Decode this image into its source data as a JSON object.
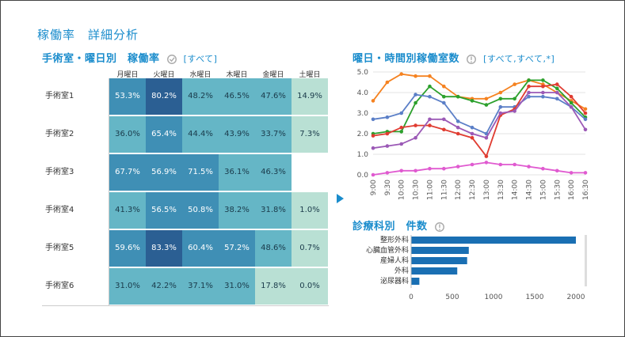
{
  "page_title": "稼働率　詳細分析",
  "heatmap": {
    "title": "手術室・曜日別　稼働率",
    "filter": "[すべて]",
    "columns": [
      "月曜日",
      "火曜日",
      "水曜日",
      "木曜日",
      "金曜日",
      "土曜日"
    ],
    "rows": [
      {
        "label": "手術室1",
        "values": [
          "53.3%",
          "80.2%",
          "48.2%",
          "46.5%",
          "47.6%",
          "14.9%"
        ]
      },
      {
        "label": "手術室2",
        "values": [
          "36.0%",
          "65.4%",
          "44.4%",
          "43.9%",
          "33.7%",
          "7.3%"
        ]
      },
      {
        "label": "手術室3",
        "values": [
          "67.7%",
          "56.9%",
          "71.5%",
          "36.1%",
          "46.3%",
          ""
        ]
      },
      {
        "label": "手術室4",
        "values": [
          "41.3%",
          "56.5%",
          "50.8%",
          "38.2%",
          "31.8%",
          "1.0%"
        ]
      },
      {
        "label": "手術室5",
        "values": [
          "59.6%",
          "83.3%",
          "60.4%",
          "57.2%",
          "48.6%",
          "0.7%"
        ]
      },
      {
        "label": "手術室6",
        "values": [
          "31.0%",
          "42.2%",
          "37.1%",
          "31.0%",
          "17.8%",
          "0.0%"
        ]
      }
    ],
    "colors": {
      "dark": "#2b5f93",
      "mid": "#3f8fb5",
      "light": "#65b6c6",
      "pale": "#b9e0d4",
      "text_light": "#ffffff",
      "text_dark": "#1a3a4a"
    }
  },
  "line_chart": {
    "title": "曜日・時間別稼働室数",
    "filter": "[すべて,すべて,*]"
  },
  "bar_chart": {
    "title": "診療科別　件数"
  },
  "chart_data": [
    {
      "type": "line",
      "title": "曜日・時間別稼働室数",
      "x": [
        "9:00",
        "9:30",
        "10:00",
        "10:30",
        "11:00",
        "11:30",
        "12:00",
        "12:30",
        "13:00",
        "13:30",
        "14:00",
        "14:30",
        "15:00",
        "15:30",
        "16:00",
        "16:30"
      ],
      "ylim": [
        0,
        5
      ],
      "yticks": [
        0.0,
        1.0,
        2.0,
        3.0,
        4.0,
        5.0
      ],
      "grid": true,
      "series": [
        {
          "color": "#f58220",
          "values": [
            3.6,
            4.5,
            4.9,
            4.8,
            4.8,
            4.3,
            3.8,
            3.7,
            3.7,
            4.0,
            4.4,
            4.6,
            4.4,
            4.0,
            3.6,
            3.2
          ]
        },
        {
          "color": "#2ca02c",
          "values": [
            2.0,
            2.1,
            2.1,
            3.5,
            4.3,
            3.8,
            3.8,
            3.6,
            3.4,
            3.7,
            3.7,
            4.6,
            4.6,
            4.2,
            3.5,
            2.8
          ]
        },
        {
          "color": "#5b7fc7",
          "values": [
            2.7,
            2.8,
            3.0,
            3.9,
            3.8,
            3.5,
            2.6,
            2.3,
            2.0,
            3.3,
            3.3,
            3.8,
            3.8,
            3.7,
            3.3,
            2.7
          ]
        },
        {
          "color": "#e03c31",
          "values": [
            1.9,
            2.0,
            2.3,
            2.4,
            2.4,
            2.2,
            2.0,
            1.8,
            0.9,
            2.9,
            3.2,
            4.3,
            4.3,
            4.4,
            3.8,
            3.0
          ]
        },
        {
          "color": "#9b59b6",
          "values": [
            1.3,
            1.4,
            1.5,
            1.8,
            2.7,
            2.7,
            2.3,
            2.0,
            1.8,
            3.0,
            3.1,
            4.0,
            4.0,
            4.0,
            3.3,
            2.2
          ]
        },
        {
          "color": "#e05ad0",
          "values": [
            0.0,
            0.1,
            0.2,
            0.2,
            0.3,
            0.3,
            0.4,
            0.5,
            0.6,
            0.5,
            0.5,
            0.4,
            0.3,
            0.2,
            0.1,
            0.1
          ]
        }
      ]
    },
    {
      "type": "bar",
      "orientation": "horizontal",
      "title": "診療科別　件数",
      "categories": [
        "整形外科",
        "心臓血管外科",
        "産婦人科",
        "外科",
        "泌尿器科"
      ],
      "values": [
        2000,
        700,
        680,
        560,
        100
      ],
      "xlim": [
        0,
        2000
      ],
      "xticks": [
        0,
        500,
        1000,
        1500,
        2000
      ],
      "color": "#1a6fb3"
    }
  ]
}
